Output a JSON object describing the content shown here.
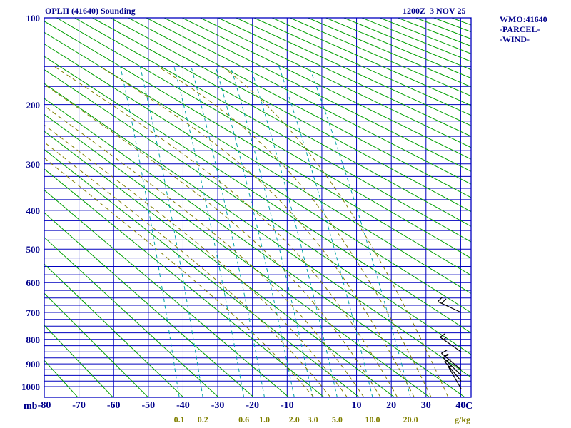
{
  "chart_data": {
    "type": "stuve-sounding",
    "title": "OPLH (41640) Sounding",
    "valid_time": "1200Z  3 NOV 25",
    "info_panel": [
      "WMO:41640",
      "-PARCEL-",
      "-WIND-"
    ],
    "pressure_axis": {
      "unit": "mb",
      "min": 100,
      "max": 1050,
      "tick_labels": [
        100,
        200,
        300,
        400,
        500,
        600,
        700,
        800,
        900,
        1000
      ],
      "gridline_step_mb": 25,
      "scale": "p^0.286 (Stuve)"
    },
    "temp_axis": {
      "unit": "C",
      "min": -80,
      "max": 43,
      "tick_labels": [
        -80,
        -70,
        -60,
        -50,
        -40,
        -30,
        -20,
        -10,
        10,
        20,
        30,
        40
      ],
      "gridline_step_c": 10
    },
    "dry_adiabats_theta_k": {
      "start": 190,
      "end": 610,
      "step": 10
    },
    "moist_adiabats_thetaw_c": [
      -5,
      0,
      5,
      10,
      15,
      20,
      25,
      30,
      35
    ],
    "mixing_ratio_g_kg": [
      0.1,
      0.2,
      0.6,
      1.0,
      2.0,
      3.0,
      5.0,
      10.0,
      20.0
    ],
    "mixing_ratio_labels": [
      "0.1",
      "0.2",
      "0.6",
      "1.0",
      "2.0",
      "3.0",
      "5.0",
      "10.0",
      "20.0"
    ],
    "mixing_ratio_unit": "g/kg",
    "winds": [
      {
        "p_mb": 1010,
        "dir_deg": 330,
        "speed_kt": 5
      },
      {
        "p_mb": 975,
        "dir_deg": 320,
        "speed_kt": 10
      },
      {
        "p_mb": 950,
        "dir_deg": 315,
        "speed_kt": 10
      },
      {
        "p_mb": 925,
        "dir_deg": 310,
        "speed_kt": 15
      },
      {
        "p_mb": 850,
        "dir_deg": 305,
        "speed_kt": 15
      },
      {
        "p_mb": 700,
        "dir_deg": 295,
        "speed_kt": 20
      }
    ],
    "colors": {
      "grid": "#0000bf",
      "frame": "#0000bf",
      "text": "#00008b",
      "dry_adiabat": "#00a000",
      "moist_adiabat": "#808000",
      "mixing_ratio": "#00a3a3",
      "mixing_label": "#808000",
      "wind": "#000000"
    },
    "legend_position": "top-right-margin",
    "grid": true
  }
}
